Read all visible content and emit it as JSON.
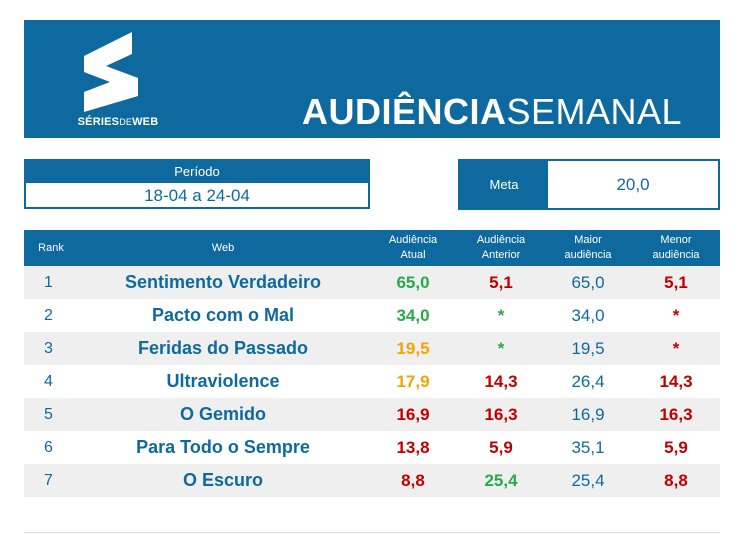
{
  "brand": {
    "logo_main": "SÉRIES",
    "logo_de": "DE",
    "logo_end": "WEB",
    "logo_icon": "s-logo-icon"
  },
  "header": {
    "title_bold": "AUDIÊNCIA",
    "title_normal": "SEMANAL"
  },
  "periodo": {
    "label": "Período",
    "value": "18-04 a 24-04"
  },
  "meta": {
    "label": "Meta",
    "value": "20,0"
  },
  "colors": {
    "primary": "#0e6a9e",
    "green": "#2aa84a",
    "orange": "#f0a500",
    "red": "#c00000"
  },
  "table": {
    "headers": {
      "rank": "Rank",
      "web": "Web",
      "atual_1": "Audiência",
      "atual_2": "Atual",
      "anterior_1": "Audiência",
      "anterior_2": "Anterior",
      "maior_1": "Maior",
      "maior_2": "audiência",
      "menor_1": "Menor",
      "menor_2": "audiência"
    },
    "rows": [
      {
        "rank": "1",
        "web": "Sentimento Verdadeiro",
        "atual": "65,0",
        "atual_color": "green",
        "anterior": "5,1",
        "anterior_color": "red",
        "maior": "65,0",
        "menor": "5,1",
        "menor_color": "red"
      },
      {
        "rank": "2",
        "web": "Pacto com o Mal",
        "atual": "34,0",
        "atual_color": "green",
        "anterior": "*",
        "anterior_color": "green",
        "maior": "34,0",
        "menor": "*",
        "menor_color": "red"
      },
      {
        "rank": "3",
        "web": "Feridas do Passado",
        "atual": "19,5",
        "atual_color": "orange",
        "anterior": "*",
        "anterior_color": "green",
        "maior": "19,5",
        "menor": "*",
        "menor_color": "red"
      },
      {
        "rank": "4",
        "web": "Ultraviolence",
        "atual": "17,9",
        "atual_color": "orange",
        "anterior": "14,3",
        "anterior_color": "red",
        "maior": "26,4",
        "menor": "14,3",
        "menor_color": "red"
      },
      {
        "rank": "5",
        "web": "O Gemido",
        "atual": "16,9",
        "atual_color": "red",
        "anterior": "16,3",
        "anterior_color": "red",
        "maior": "16,9",
        "menor": "16,3",
        "menor_color": "red"
      },
      {
        "rank": "6",
        "web": "Para Todo o Sempre",
        "atual": "13,8",
        "atual_color": "red",
        "anterior": "5,9",
        "anterior_color": "red",
        "maior": "35,1",
        "menor": "5,9",
        "menor_color": "red"
      },
      {
        "rank": "7",
        "web": "O Escuro",
        "atual": "8,8",
        "atual_color": "red",
        "anterior": "25,4",
        "anterior_color": "green",
        "maior": "25,4",
        "menor": "8,8",
        "menor_color": "red"
      }
    ]
  }
}
